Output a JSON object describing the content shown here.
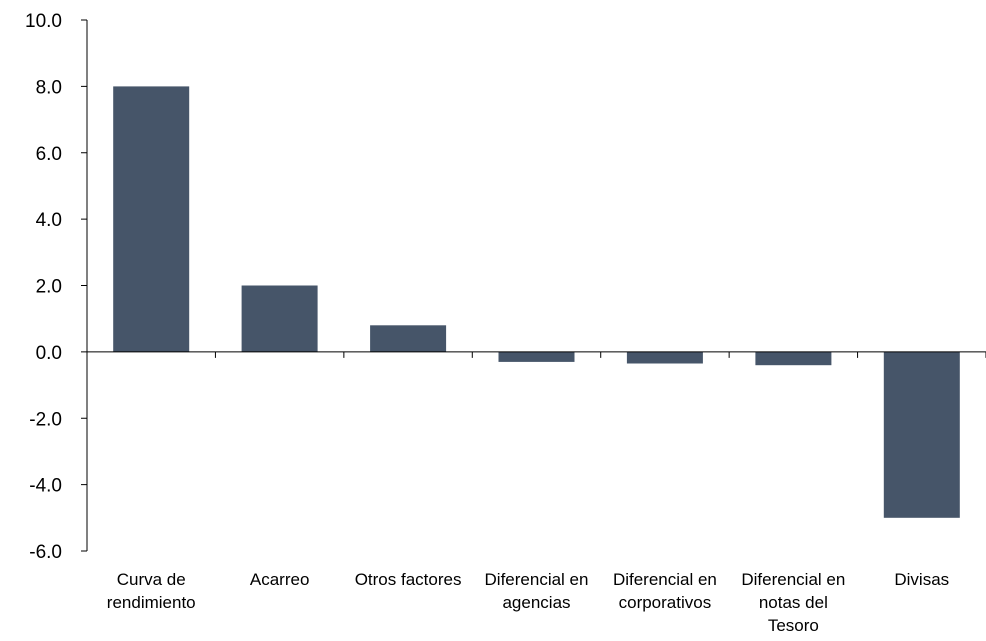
{
  "chart_data": {
    "type": "bar",
    "categories": [
      [
        "Curva de",
        "rendimiento"
      ],
      [
        "Acarreo"
      ],
      [
        "Otros factores"
      ],
      [
        "Diferencial en",
        "agencias"
      ],
      [
        "Diferencial en",
        "corporativos"
      ],
      [
        "Diferencial en",
        "notas del",
        "Tesoro"
      ],
      [
        "Divisas"
      ]
    ],
    "values": [
      8.0,
      2.0,
      0.8,
      -0.3,
      -0.35,
      -0.4,
      -5.0
    ],
    "ylim": [
      -6,
      10
    ],
    "yticks": [
      "10.0",
      "8.0",
      "6.0",
      "4.0",
      "2.0",
      "0.0",
      "-2.0",
      "-4.0",
      "-6.0"
    ],
    "title": "",
    "xlabel": "",
    "ylabel": "",
    "grid": false,
    "colors": {
      "bar": "#465569"
    }
  }
}
